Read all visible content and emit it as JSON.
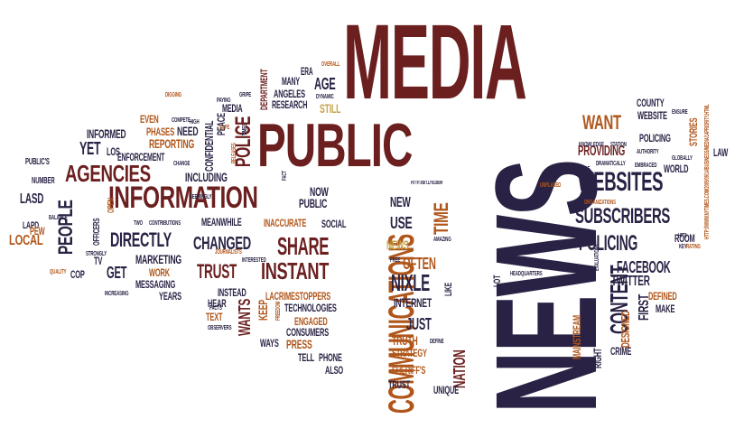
{
  "colors": {
    "dark_red": "#6b1f1f",
    "navy": "#2a2244",
    "orange_brown": "#b0561a",
    "gold": "#c6a34a",
    "deep_navy": "#1f1b3a"
  },
  "words": [
    {
      "id": "media",
      "text": "MEDIA",
      "color": "#6b1f1f"
    },
    {
      "id": "public",
      "text": "PUBLIC",
      "color": "#6b1f1f"
    },
    {
      "id": "news",
      "text": "NEWS",
      "color": "#2a2244"
    },
    {
      "id": "information",
      "text": "INFORMATION",
      "color": "#6b1f1f"
    },
    {
      "id": "communications",
      "text": "COMMUNICATIONS",
      "color": "#b0561a"
    },
    {
      "id": "agencies",
      "text": "AGENCIES",
      "color": "#6b1f1f"
    },
    {
      "id": "people",
      "text": "PEOPLE",
      "color": "#2a2244"
    },
    {
      "id": "websites",
      "text": "WEBSITES",
      "color": "#2a2244"
    },
    {
      "id": "subscribers",
      "text": "SUBSCRIBERS",
      "color": "#2a2244"
    },
    {
      "id": "directly",
      "text": "DIRECTLY",
      "color": "#2a2244"
    },
    {
      "id": "changed",
      "text": "CHANGED",
      "color": "#2a2244"
    },
    {
      "id": "instant",
      "text": "INSTANT",
      "color": "#6b1f1f"
    },
    {
      "id": "share",
      "text": "SHARE",
      "color": "#6b1f1f"
    },
    {
      "id": "trust1",
      "text": "TRUST",
      "color": "#6b1f1f"
    },
    {
      "id": "policing1",
      "text": "POLICING",
      "color": "#2a2244"
    },
    {
      "id": "content",
      "text": "CONTENT",
      "color": "#2a2244"
    },
    {
      "id": "providing",
      "text": "PROVIDING",
      "color": "#6b1f1f"
    },
    {
      "id": "want",
      "text": "WANT",
      "color": "#b0561a"
    },
    {
      "id": "time",
      "text": "TIME",
      "color": "#b0561a"
    },
    {
      "id": "nixle",
      "text": "NIXLE",
      "color": "#2a2244"
    },
    {
      "id": "often",
      "text": "OFTEN",
      "color": "#b0561a"
    },
    {
      "id": "use",
      "text": "USE",
      "color": "#2a2244"
    },
    {
      "id": "new",
      "text": "NEW",
      "color": "#2a2244"
    },
    {
      "id": "news_small",
      "text": "NEWS",
      "color": "#c6a34a"
    },
    {
      "id": "internet",
      "text": "INTERNET",
      "color": "#2a2244"
    },
    {
      "id": "just",
      "text": "JUST",
      "color": "#2a2244"
    },
    {
      "id": "nation",
      "text": "NATION",
      "color": "#6b1f1f"
    },
    {
      "id": "yet",
      "text": "YET",
      "color": "#2a2244"
    },
    {
      "id": "get",
      "text": "GET",
      "color": "#2a2244"
    },
    {
      "id": "local",
      "text": "LOCAL",
      "color": "#b0561a"
    },
    {
      "id": "lasd",
      "text": "LASD",
      "color": "#2a2244"
    },
    {
      "id": "marketing",
      "text": "MARKETING",
      "color": "#2a2244"
    },
    {
      "id": "police",
      "text": "POLICE",
      "color": "#6b1f1f"
    },
    {
      "id": "including",
      "text": "INCLUDING",
      "color": "#2a2244"
    },
    {
      "id": "reporting",
      "text": "REPORTING",
      "color": "#b0561a"
    },
    {
      "id": "enforcement",
      "text": "ENFORCEMENT",
      "color": "#2a2244"
    },
    {
      "id": "informed",
      "text": "INFORMED",
      "color": "#2a2244"
    },
    {
      "id": "phases",
      "text": "PHASES",
      "color": "#b0561a"
    },
    {
      "id": "even",
      "text": "EVEN",
      "color": "#b0561a"
    },
    {
      "id": "need",
      "text": "NEED",
      "color": "#2a2244"
    },
    {
      "id": "confidential",
      "text": "CONFIDENTIAL",
      "color": "#2a2244"
    },
    {
      "id": "peace",
      "text": "PEACE",
      "color": "#2a2244"
    },
    {
      "id": "media_small",
      "text": "MEDIA",
      "color": "#2a2244"
    },
    {
      "id": "department",
      "text": "DEPARTMENT",
      "color": "#6b1f1f"
    },
    {
      "id": "many",
      "text": "MANY",
      "color": "#2a2244"
    },
    {
      "id": "angeles",
      "text": "ANGELES",
      "color": "#2a2244"
    },
    {
      "id": "research",
      "text": "RESEARCH",
      "color": "#2a2244"
    },
    {
      "id": "era",
      "text": "ERA",
      "color": "#2a2244"
    },
    {
      "id": "age",
      "text": "AGE",
      "color": "#2a2244"
    },
    {
      "id": "still",
      "text": "STILL",
      "color": "#c6a34a"
    },
    {
      "id": "overall",
      "text": "OVERALL",
      "color": "#b0561a"
    },
    {
      "id": "dynamic",
      "text": "DYNAMIC",
      "color": "#2a2244"
    },
    {
      "id": "now",
      "text": "NOW",
      "color": "#2a2244"
    },
    {
      "id": "public_small",
      "text": "PUBLIC",
      "color": "#2a2244"
    },
    {
      "id": "social",
      "text": "SOCIAL",
      "color": "#2a2244"
    },
    {
      "id": "inaccurate",
      "text": "INACCURATE",
      "color": "#b0561a"
    },
    {
      "id": "meanwhile",
      "text": "MEANWHILE",
      "color": "#2a2244"
    },
    {
      "id": "work",
      "text": "WORK",
      "color": "#b0561a"
    },
    {
      "id": "messaging",
      "text": "MESSAGING",
      "color": "#2a2244"
    },
    {
      "id": "years",
      "text": "YEARS",
      "color": "#2a2244"
    },
    {
      "id": "instead",
      "text": "INSTEAD",
      "color": "#2a2244"
    },
    {
      "id": "hear",
      "text": "HEAR",
      "color": "#2a2244"
    },
    {
      "id": "text",
      "text": "TEXT",
      "color": "#b0561a"
    },
    {
      "id": "wants",
      "text": "WANTS",
      "color": "#6b1f1f"
    },
    {
      "id": "keep",
      "text": "KEEP",
      "color": "#b0561a"
    },
    {
      "id": "lacrimestoppers",
      "text": "LACRIMESTOPPERS",
      "color": "#b0561a"
    },
    {
      "id": "technologies",
      "text": "TECHNOLOGIES",
      "color": "#2a2244"
    },
    {
      "id": "engaged",
      "text": "ENGAGED",
      "color": "#b0561a"
    },
    {
      "id": "consumers",
      "text": "CONSUMERS",
      "color": "#2a2244"
    },
    {
      "id": "ways",
      "text": "WAYS",
      "color": "#2a2244"
    },
    {
      "id": "press",
      "text": "PRESS",
      "color": "#b0561a"
    },
    {
      "id": "tell",
      "text": "TELL",
      "color": "#2a2244"
    },
    {
      "id": "phone",
      "text": "PHONE",
      "color": "#2a2244"
    },
    {
      "id": "also",
      "text": "ALSO",
      "color": "#2a2244"
    },
    {
      "id": "truth",
      "text": "TRUTH",
      "color": "#b0561a"
    },
    {
      "id": "strategy",
      "text": "STRATEGY",
      "color": "#b0561a"
    },
    {
      "id": "sheriffs",
      "text": "SHERIFF'S",
      "color": "#b0561a"
    },
    {
      "id": "trust2",
      "text": "TRUST",
      "color": "#2a2244"
    },
    {
      "id": "unique",
      "text": "UNIQUE",
      "color": "#2a2244"
    },
    {
      "id": "facebook",
      "text": "FACEBOOK",
      "color": "#2a2244"
    },
    {
      "id": "twitter",
      "text": "TWITTER",
      "color": "#2a2244"
    },
    {
      "id": "defined",
      "text": "DEFINED",
      "color": "#b0561a"
    },
    {
      "id": "make",
      "text": "MAKE",
      "color": "#2a2244"
    },
    {
      "id": "first",
      "text": "FIRST",
      "color": "#2a2244"
    },
    {
      "id": "designed",
      "text": "DESIGNED",
      "color": "#b0561a"
    },
    {
      "id": "mainstream",
      "text": "MAINSTREAM",
      "color": "#b0561a"
    },
    {
      "id": "right",
      "text": "RIGHT",
      "color": "#2a2244"
    },
    {
      "id": "crime",
      "text": "CRIME",
      "color": "#2a2244"
    },
    {
      "id": "county",
      "text": "COUNTY",
      "color": "#2a2244"
    },
    {
      "id": "website",
      "text": "WEBSITE",
      "color": "#2a2244"
    },
    {
      "id": "policing2",
      "text": "POLICING",
      "color": "#2a2244"
    },
    {
      "id": "stories",
      "text": "STORIES",
      "color": "#b0561a"
    },
    {
      "id": "law",
      "text": "LAW",
      "color": "#2a2244"
    },
    {
      "id": "world",
      "text": "WORLD",
      "color": "#2a2244"
    },
    {
      "id": "room",
      "text": "ROOM",
      "color": "#2a2244"
    },
    {
      "id": "lot",
      "text": "LOT",
      "color": "#2a2244"
    },
    {
      "id": "like",
      "text": "LIKE",
      "color": "#2a2244"
    },
    {
      "id": "headquarters",
      "text": "HEADQUARTERS",
      "color": "#2a2244"
    },
    {
      "id": "lapd",
      "text": "LAPD",
      "color": "#2a2244"
    },
    {
      "id": "pew",
      "text": "PEW",
      "color": "#b0561a"
    },
    {
      "id": "cop",
      "text": "COP",
      "color": "#2a2244"
    },
    {
      "id": "tv",
      "text": "TV",
      "color": "#2a2244"
    },
    {
      "id": "officers",
      "text": "OFFICERS",
      "color": "#2a2244"
    },
    {
      "id": "open",
      "text": "OPEN",
      "color": "#b0561a"
    },
    {
      "id": "publics",
      "text": "PUBLIC'S",
      "color": "#2a2244"
    },
    {
      "id": "number",
      "text": "NUMBER",
      "color": "#2a2244"
    },
    {
      "id": "los",
      "text": "LOS",
      "color": "#2a2244"
    },
    {
      "id": "url1",
      "text": "HTTP://BIT.LY/EDBIH",
      "color": "#2a2244"
    },
    {
      "id": "url2",
      "text": "HTTP://WWW.NYTIMES.COM/2009/09/14/BUSINESS/MEDIA/14PRIORITY.HTML",
      "color": "#b0561a"
    },
    {
      "id": "unplased",
      "text": "UNPLASED",
      "color": "#b0561a"
    },
    {
      "id": "organizations",
      "text": "ORGANIZATIONS",
      "color": "#b0561a"
    },
    {
      "id": "embraced",
      "text": "EMBRACED",
      "color": "#2a2244"
    },
    {
      "id": "dramatically",
      "text": "DRAMATICALLY",
      "color": "#2a2244"
    },
    {
      "id": "knowledge",
      "text": "KNOWLEDGE",
      "color": "#2a2244"
    },
    {
      "id": "station",
      "text": "STATION",
      "color": "#2a2244"
    },
    {
      "id": "made",
      "text": "MADE",
      "color": "#2a2244"
    },
    {
      "id": "globally",
      "text": "GLOBALLY",
      "color": "#2a2244"
    },
    {
      "id": "rating",
      "text": "RATING",
      "color": "#b0561a"
    },
    {
      "id": "hits",
      "text": "HITS",
      "color": "#2a2244"
    },
    {
      "id": "key",
      "text": "KEY",
      "color": "#2a2244"
    },
    {
      "id": "authority",
      "text": "AUTHORITY",
      "color": "#2a2244"
    },
    {
      "id": "evaluations",
      "text": "EVALUATIONS",
      "color": "#2a2244"
    },
    {
      "id": "using",
      "text": "USING",
      "color": "#2a2244"
    },
    {
      "id": "amazing",
      "text": "AMAZING",
      "color": "#2a2244"
    },
    {
      "id": "free",
      "text": "FREE",
      "color": "#2a2244"
    },
    {
      "id": "define",
      "text": "DEFINE",
      "color": "#2a2244"
    },
    {
      "id": "observers",
      "text": "OBSERVERS",
      "color": "#2a2244"
    },
    {
      "id": "freedom",
      "text": "FREEDOM",
      "color": "#b0561a"
    },
    {
      "id": "facts",
      "text": "FACTS",
      "color": "#2a2244"
    },
    {
      "id": "interested",
      "text": "INTERESTED",
      "color": "#2a2244"
    },
    {
      "id": "journalists",
      "text": "JOURNALISTS",
      "color": "#b0561a"
    },
    {
      "id": "contributions",
      "text": "CONTRIBUTIONS",
      "color": "#2a2244"
    },
    {
      "id": "two",
      "text": "TWO",
      "color": "#2a2244"
    },
    {
      "id": "strongly",
      "text": "STRONGLY",
      "color": "#2a2244"
    },
    {
      "id": "increasing",
      "text": "INCREASING",
      "color": "#2a2244"
    },
    {
      "id": "quality",
      "text": "QUALITY",
      "color": "#b0561a"
    },
    {
      "id": "balance",
      "text": "BALANCE",
      "color": "#2a2244"
    },
    {
      "id": "change",
      "text": "CHANGE",
      "color": "#2a2244"
    },
    {
      "id": "seemingly",
      "text": "SEEMINGLY",
      "color": "#2a2244"
    },
    {
      "id": "fact",
      "text": "FACT",
      "color": "#2a2244"
    },
    {
      "id": "releases",
      "text": "RELEASES",
      "color": "#b0561a"
    },
    {
      "id": "times",
      "text": "TIMES",
      "color": "#2a2244"
    },
    {
      "id": "safe",
      "text": "SAFE",
      "color": "#b0561a"
    },
    {
      "id": "high",
      "text": "HIGH",
      "color": "#2a2244"
    },
    {
      "id": "compete",
      "text": "COMPETE",
      "color": "#2a2244"
    },
    {
      "id": "digging",
      "text": "DIGGING",
      "color": "#b0561a"
    },
    {
      "id": "paying",
      "text": "PAYING",
      "color": "#2a2244"
    },
    {
      "id": "gripe",
      "text": "GRIPE",
      "color": "#2a2244"
    },
    {
      "id": "ensure",
      "text": "ENSURE",
      "color": "#2a2244"
    }
  ]
}
